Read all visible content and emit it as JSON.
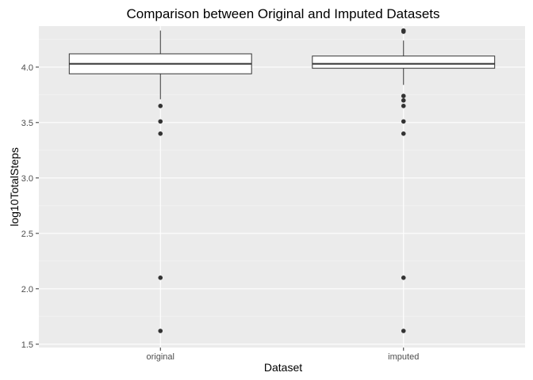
{
  "chart_data": {
    "type": "boxplot",
    "title": "Comparison between Original and Imputed Datasets",
    "xlabel": "Dataset",
    "ylabel": "log10TotalSteps",
    "categories": [
      "original",
      "imputed"
    ],
    "ylim": [
      1.47,
      4.37
    ],
    "yticks": [
      1.5,
      2.0,
      2.5,
      3.0,
      3.5,
      4.0
    ],
    "ytick_labels": [
      "1.5",
      "2.0",
      "2.5",
      "3.0",
      "3.5",
      "4.0"
    ],
    "grid": true,
    "legend": "none",
    "colors": {
      "panel": "#ebebeb",
      "grid_major": "#ffffff",
      "grid_minor": "#f5f5f5",
      "box_fill": "#ffffff",
      "box_stroke": "#333333",
      "outlier": "#333333"
    },
    "boxes": [
      {
        "category": "original",
        "whisker_low": 3.71,
        "q1": 3.94,
        "median": 4.03,
        "q3": 4.12,
        "whisker_high": 4.33,
        "outliers": [
          3.65,
          3.51,
          3.4,
          2.1,
          1.62
        ]
      },
      {
        "category": "imputed",
        "whisker_low": 3.84,
        "q1": 3.99,
        "median": 4.03,
        "q3": 4.1,
        "whisker_high": 4.24,
        "outliers": [
          4.33,
          4.32,
          3.74,
          3.7,
          3.65,
          3.51,
          3.4,
          2.1,
          1.62
        ]
      }
    ]
  }
}
